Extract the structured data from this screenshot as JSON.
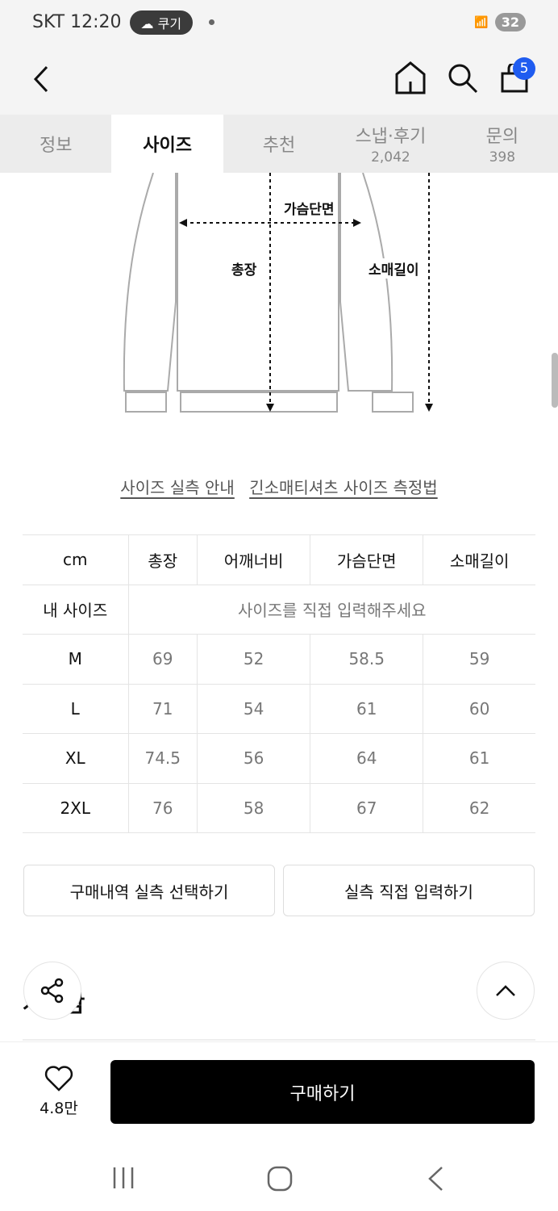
{
  "status": {
    "carrier": "SKT",
    "time": "12:20",
    "pill": "쿠기",
    "battery": "32"
  },
  "header": {
    "cart_count": "5"
  },
  "tabs": [
    {
      "label": "정보"
    },
    {
      "label": "사이즈"
    },
    {
      "label": "추천"
    },
    {
      "label": "스냅·후기",
      "count": "2,042"
    },
    {
      "label": "문의",
      "count": "398"
    }
  ],
  "diagram": {
    "chest": "가슴단면",
    "length": "총장",
    "sleeve": "소매길이"
  },
  "links": {
    "guide": "사이즈 실측 안내",
    "method": "긴소매티셔츠 사이즈 측정법"
  },
  "table": {
    "headers": [
      "cm",
      "총장",
      "어깨너비",
      "가슴단면",
      "소매길이"
    ],
    "my_size_label": "내 사이즈",
    "my_size_prompt": "사이즈를 직접 입력해주세요",
    "rows": [
      [
        "M",
        "69",
        "52",
        "58.5",
        "59"
      ],
      [
        "L",
        "71",
        "54",
        "61",
        "60"
      ],
      [
        "XL",
        "74.5",
        "56",
        "64",
        "61"
      ],
      [
        "2XL",
        "76",
        "58",
        "67",
        "62"
      ]
    ]
  },
  "buttons": {
    "history": "구매내역 실측 선택하기",
    "manual": "실측 직접 입력하기"
  },
  "section_title": "계절감",
  "bottom": {
    "likes": "4.8만",
    "buy": "구매하기"
  },
  "colors": {
    "badge": "#1f5cf0",
    "buy": "#000000"
  }
}
